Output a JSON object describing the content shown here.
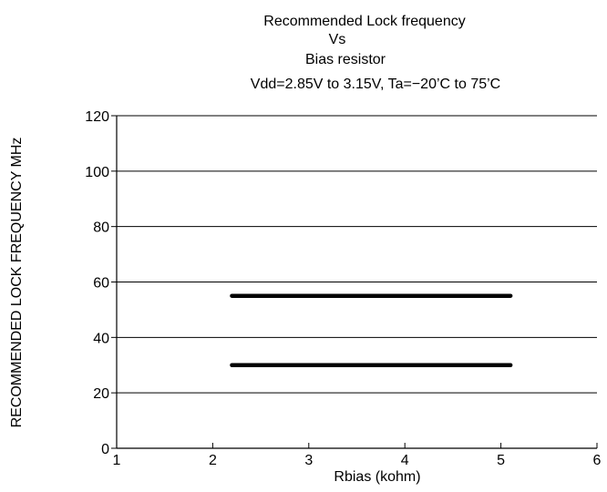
{
  "chart_data": {
    "type": "line",
    "title_lines": [
      "Recommended Lock frequency",
      "Vs",
      "Bias resistor",
      "Vdd=2.85V to 3.15V, Ta=−20’C to 75’C"
    ],
    "xlabel": "Rbias (kohm)",
    "ylabel": "RECOMMENDED LOCK FREQUENCY MHz",
    "xlim": [
      1,
      6
    ],
    "ylim": [
      0,
      120
    ],
    "x_ticks": [
      "1",
      "2",
      "3",
      "4",
      "5",
      "6"
    ],
    "y_ticks": [
      "0",
      "20",
      "40",
      "60",
      "80",
      "100",
      "120"
    ],
    "grid": "horizontal",
    "series": [
      {
        "x": [
          2.2,
          5.1
        ],
        "y": [
          55,
          55
        ]
      },
      {
        "x": [
          2.2,
          5.1
        ],
        "y": [
          30,
          30
        ]
      }
    ],
    "colors": {
      "line": "#000000",
      "grid": "#000000",
      "axis": "#000000"
    }
  }
}
